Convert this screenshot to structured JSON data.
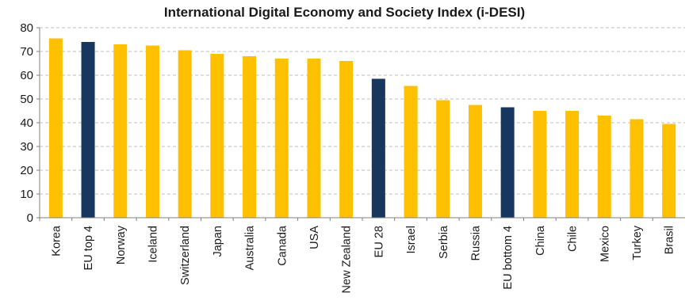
{
  "chart_data": {
    "type": "bar",
    "title": "International Digital Economy  and Society Index (i-DESI)",
    "xlabel": "",
    "ylabel": "",
    "ylim": [
      0,
      80
    ],
    "yticks": [
      0,
      10,
      20,
      30,
      40,
      50,
      60,
      70,
      80
    ],
    "grid": true,
    "legend": "none",
    "categories": [
      "Korea",
      "EU top 4",
      "Norway",
      "Iceland",
      "Switzerland",
      "Japan",
      "Australia",
      "Canada",
      "USA",
      "New Zealand",
      "EU 28",
      "Israel",
      "Serbia",
      "Russia",
      "EU bottom 4",
      "China",
      "Chile",
      "Mexico",
      "Turkey",
      "Brasil"
    ],
    "values": [
      75.5,
      74,
      73,
      72.5,
      70.5,
      69,
      68,
      67,
      67,
      66,
      58.5,
      55.5,
      49.5,
      47.5,
      46.5,
      45,
      45,
      43,
      41.5,
      39.5
    ],
    "highlighted": [
      false,
      true,
      false,
      false,
      false,
      false,
      false,
      false,
      false,
      false,
      true,
      false,
      false,
      false,
      true,
      false,
      false,
      false,
      false,
      false
    ],
    "colors": {
      "bar": "#FFC000",
      "highlight": "#17375E",
      "grid": "#BFBFBF",
      "axis": "#808080"
    }
  }
}
